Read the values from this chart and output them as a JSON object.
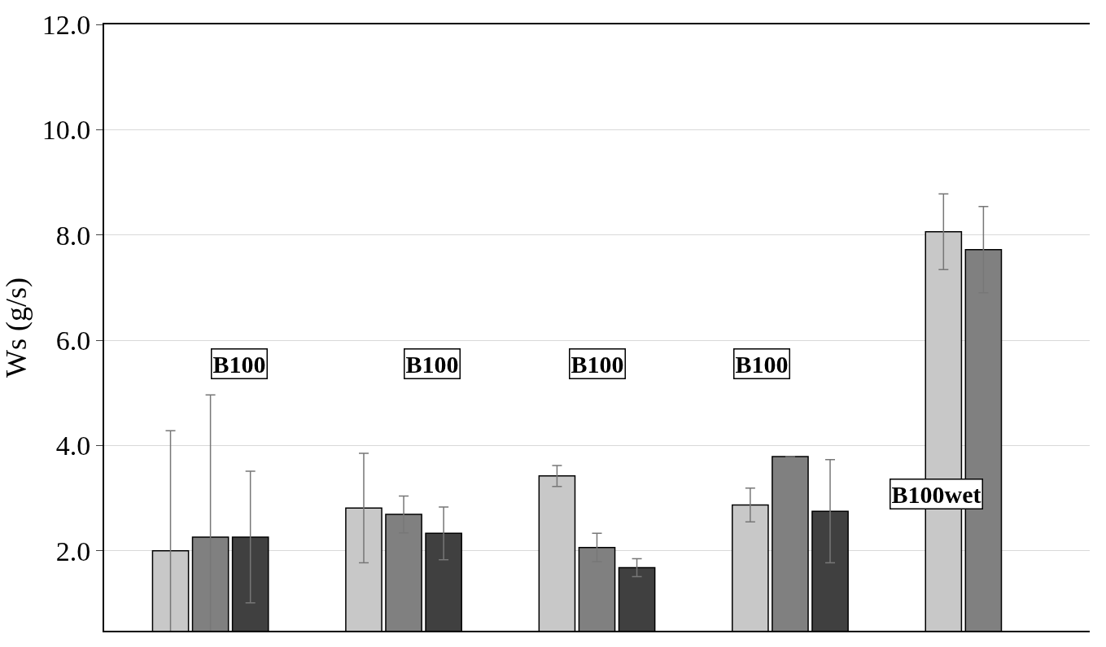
{
  "chart_data": {
    "type": "bar",
    "ylabel": "Ws (g/s)",
    "categories": [
      null,
      null,
      null,
      null,
      null
    ],
    "series": [
      {
        "color": "#c8c8c8",
        "values": [
          2.0,
          2.81,
          3.42,
          2.87,
          8.06
        ],
        "errors": [
          2.28,
          1.04,
          0.2,
          0.32,
          0.72
        ]
      },
      {
        "color": "#808080",
        "values": [
          2.26,
          2.69,
          2.06,
          3.79,
          7.72
        ],
        "errors": [
          2.7,
          0.35,
          0.27,
          null,
          0.82
        ]
      },
      {
        "color": "#404040",
        "values": [
          2.26,
          2.33,
          1.68,
          2.75,
          null
        ],
        "errors": [
          1.25,
          0.5,
          0.17,
          0.98,
          null
        ]
      }
    ],
    "ylim": [
      0.48,
      12
    ],
    "yticks": [
      {
        "value": 2,
        "label": "2.0"
      },
      {
        "value": 4,
        "label": "4.0"
      },
      {
        "value": 6,
        "label": "6.0"
      },
      {
        "value": 8,
        "label": "8.0"
      },
      {
        "value": 10,
        "label": "10.0"
      },
      {
        "value": 12,
        "label": "12.0"
      }
    ],
    "grid": "y",
    "tick_labels": "y",
    "annotations": [
      "B100",
      "B100",
      "B100",
      "B100",
      "B100wet"
    ]
  }
}
